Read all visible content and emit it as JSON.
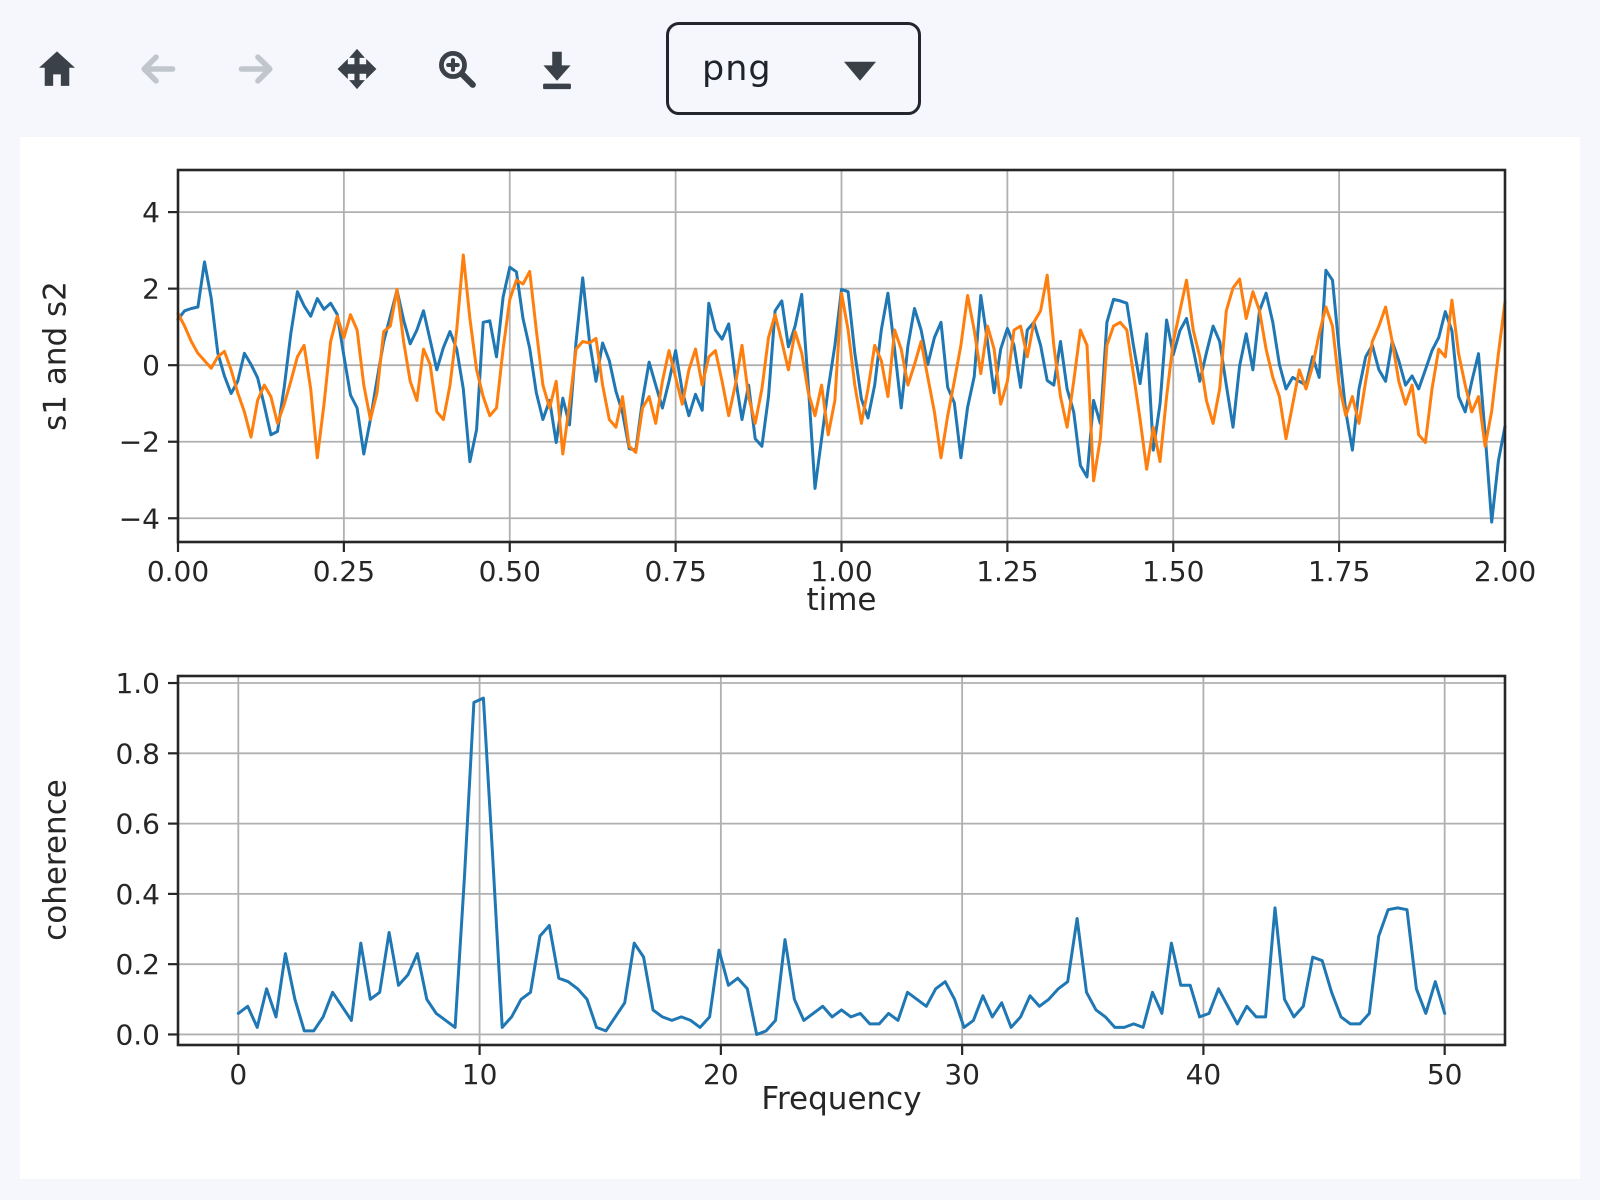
{
  "colors": {
    "page_bg": "#f5f7fd",
    "canvas_bg": "#ffffff",
    "series_blue": "#1f77b4",
    "series_orange": "#ff7f0e",
    "grid": "#b0b0b0",
    "frame": "#262626",
    "icon": "#3b4148",
    "icon_disabled": "#c1c6cd"
  },
  "toolbar": {
    "buttons": [
      {
        "name": "home",
        "icon": "home-icon",
        "enabled": true
      },
      {
        "name": "back",
        "icon": "arrow-left-icon",
        "enabled": false
      },
      {
        "name": "forward",
        "icon": "arrow-right-icon",
        "enabled": false
      },
      {
        "name": "pan",
        "icon": "move-icon",
        "enabled": true
      },
      {
        "name": "zoom",
        "icon": "zoom-in-icon",
        "enabled": true
      },
      {
        "name": "download",
        "icon": "download-icon",
        "enabled": true
      }
    ],
    "format_select": {
      "value": "png"
    }
  },
  "chart_data": [
    {
      "type": "line",
      "title": "",
      "xlabel": "time",
      "ylabel": "s1 and s2",
      "xlim": [
        0,
        2.0
      ],
      "ylim": [
        -4.62,
        5.1
      ],
      "grid": true,
      "legend": "none",
      "xticks": [
        0,
        0.25,
        0.5,
        0.75,
        1.0,
        1.25,
        1.5,
        1.75,
        2.0
      ],
      "xtick_labels": [
        "0.00",
        "0.25",
        "0.50",
        "0.75",
        "1.00",
        "1.25",
        "1.50",
        "1.75",
        "2.00"
      ],
      "yticks": [
        -4,
        -2,
        0,
        2,
        4
      ],
      "ytick_labels": [
        "−4",
        "−2",
        "0",
        "2",
        "4"
      ],
      "x": {
        "start": 0,
        "step": 0.01
      },
      "series": [
        {
          "name": "s1",
          "color": "#1f77b4",
          "values": [
            1.2,
            1.42,
            1.48,
            1.52,
            2.7,
            1.75,
            0.32,
            -0.28,
            -0.74,
            -0.42,
            0.31,
            0.02,
            -0.33,
            -1.05,
            -1.82,
            -1.73,
            -0.58,
            0.82,
            1.92,
            1.55,
            1.28,
            1.74,
            1.46,
            1.62,
            1.33,
            0.24,
            -0.78,
            -1.12,
            -2.32,
            -1.42,
            -0.38,
            0.62,
            1.28,
            1.96,
            1.18,
            0.56,
            0.92,
            1.42,
            0.66,
            -0.12,
            0.46,
            0.88,
            0.42,
            -0.62,
            -2.52,
            -1.68,
            1.12,
            1.16,
            0.22,
            1.78,
            2.56,
            2.44,
            1.22,
            0.44,
            -0.72,
            -1.42,
            -0.92,
            -2.02,
            -0.86,
            -1.56,
            0.62,
            2.28,
            0.64,
            -0.42,
            0.58,
            0.12,
            -0.68,
            -1.24,
            -2.18,
            -2.22,
            -0.92,
            0.08,
            -0.52,
            -1.12,
            -0.42,
            0.38,
            -0.68,
            -1.32,
            -0.76,
            -1.18,
            1.62,
            0.92,
            0.68,
            1.08,
            -0.32,
            -1.42,
            -0.52,
            -1.92,
            -2.12,
            -0.82,
            1.42,
            1.68,
            0.48,
            1.02,
            1.85,
            -0.52,
            -3.22,
            -1.92,
            -0.62,
            0.52,
            1.98,
            1.92,
            0.32,
            -0.88,
            -1.38,
            -0.52,
            0.92,
            1.88,
            0.42,
            -1.12,
            0.5,
            1.48,
            0.92,
            0.02,
            0.72,
            1.12,
            -0.58,
            -0.98,
            -2.42,
            -1.1,
            -0.3,
            1.82,
            0.62,
            -0.72,
            0.42,
            0.96,
            0.52,
            -0.58,
            0.92,
            1.12,
            0.52,
            -0.4,
            -0.52,
            0.62,
            -0.62,
            -1.22,
            -2.62,
            -2.92,
            -0.92,
            -1.52,
            1.12,
            1.72,
            1.68,
            1.62,
            0.52,
            -0.48,
            0.82,
            -2.22,
            -1.02,
            1.18,
            0.28,
            0.9,
            1.22,
            0.42,
            -0.42,
            0.32,
            1.02,
            0.62,
            -0.52,
            -1.62,
            -0.02,
            0.82,
            -0.12,
            1.42,
            1.88,
            1.12,
            0.02,
            -0.62,
            -0.32,
            -0.42,
            -0.52,
            0.22,
            -0.32,
            2.48,
            2.22,
            0.42,
            -1.22,
            -2.22,
            -0.62,
            0.22,
            0.52,
            -0.12,
            -0.42,
            0.62,
            0.12,
            -0.52,
            -0.28,
            -0.62,
            -0.12,
            0.38,
            0.72,
            1.4,
            0.9,
            -0.82,
            -1.22,
            -0.42,
            0.3,
            -1.8,
            -4.1,
            -2.5,
            -1.6
          ]
        },
        {
          "name": "s2",
          "color": "#ff7f0e",
          "values": [
            1.35,
            1.02,
            0.62,
            0.31,
            0.12,
            -0.08,
            0.22,
            0.36,
            -0.12,
            -0.72,
            -1.22,
            -1.88,
            -0.92,
            -0.52,
            -0.82,
            -1.52,
            -1.02,
            -0.42,
            0.22,
            0.52,
            -0.62,
            -2.42,
            -1.02,
            0.62,
            1.28,
            0.72,
            1.32,
            0.92,
            -0.52,
            -1.42,
            -0.72,
            0.88,
            1.02,
            1.98,
            0.62,
            -0.42,
            -0.92,
            0.42,
            0.02,
            -1.22,
            -1.42,
            -0.52,
            0.92,
            2.88,
            1.22,
            -0.12,
            -0.82,
            -1.32,
            -1.12,
            0.42,
            1.72,
            2.22,
            2.12,
            2.45,
            0.92,
            -0.52,
            -1.12,
            -0.42,
            -2.32,
            -1.02,
            0.42,
            0.62,
            0.58,
            0.7,
            -0.52,
            -1.42,
            -1.62,
            -0.82,
            -2.12,
            -2.28,
            -1.12,
            -0.82,
            -1.52,
            -0.42,
            0.38,
            -0.32,
            -1.02,
            -0.12,
            0.42,
            -0.52,
            0.22,
            0.38,
            -0.42,
            -1.32,
            -0.52,
            0.52,
            -0.82,
            -1.52,
            -0.62,
            0.72,
            1.32,
            0.62,
            -0.12,
            0.88,
            0.32,
            -0.72,
            -1.32,
            -0.52,
            -1.82,
            -0.92,
            1.88,
            0.92,
            -0.52,
            -1.52,
            -0.62,
            0.52,
            0.12,
            -0.82,
            0.92,
            0.42,
            -0.52,
            0.02,
            0.62,
            -0.32,
            -1.22,
            -2.42,
            -1.32,
            -0.42,
            0.52,
            1.82,
            0.92,
            -0.22,
            1.02,
            0.42,
            -1.02,
            -0.42,
            0.92,
            1.02,
            0.22,
            1.12,
            1.42,
            2.35,
            0.52,
            -0.82,
            -1.62,
            -0.42,
            0.92,
            0.52,
            -3.02,
            -1.92,
            0.52,
            1.02,
            1.12,
            0.92,
            -0.22,
            -1.42,
            -2.72,
            -1.62,
            -2.52,
            -0.82,
            0.62,
            1.42,
            2.22,
            0.92,
            0.22,
            -0.92,
            -1.52,
            -0.62,
            1.42,
            2.02,
            2.25,
            1.22,
            1.92,
            1.42,
            0.42,
            -0.32,
            -0.82,
            -1.92,
            -1.02,
            -0.12,
            -0.62,
            -0.02,
            0.82,
            1.52,
            1.02,
            -0.52,
            -1.32,
            -0.82,
            -1.52,
            -0.42,
            0.62,
            1.02,
            1.52,
            0.62,
            -0.42,
            -1.02,
            -0.52,
            -1.82,
            -2.02,
            -0.62,
            0.42,
            0.22,
            1.7,
            0.3,
            -0.52,
            -1.22,
            -0.82,
            -2.12,
            -1.2,
            0.3,
            1.65
          ]
        }
      ]
    },
    {
      "type": "line",
      "title": "",
      "xlabel": "Frequency",
      "ylabel": "coherence",
      "xlim": [
        -2.5,
        52.5
      ],
      "ylim": [
        -0.03,
        1.02
      ],
      "grid": true,
      "legend": "none",
      "xticks": [
        0,
        10,
        20,
        30,
        40,
        50
      ],
      "xtick_labels": [
        "0",
        "10",
        "20",
        "30",
        "40",
        "50"
      ],
      "yticks": [
        0,
        0.2,
        0.4,
        0.6,
        0.8,
        1.0
      ],
      "ytick_labels": [
        "0.0",
        "0.2",
        "0.4",
        "0.6",
        "0.8",
        "1.0"
      ],
      "x": {
        "start": 0,
        "step": 0.390625
      },
      "series": [
        {
          "name": "coherence",
          "color": "#1f77b4",
          "values": [
            0.06,
            0.08,
            0.02,
            0.13,
            0.05,
            0.23,
            0.1,
            0.01,
            0.01,
            0.05,
            0.12,
            0.08,
            0.04,
            0.26,
            0.1,
            0.12,
            0.29,
            0.14,
            0.17,
            0.23,
            0.1,
            0.06,
            0.04,
            0.02,
            0.45,
            0.945,
            0.957,
            0.5,
            0.02,
            0.05,
            0.1,
            0.12,
            0.28,
            0.31,
            0.16,
            0.15,
            0.13,
            0.1,
            0.02,
            0.01,
            0.05,
            0.09,
            0.26,
            0.22,
            0.07,
            0.05,
            0.04,
            0.05,
            0.04,
            0.02,
            0.05,
            0.24,
            0.14,
            0.16,
            0.13,
            0.0,
            0.01,
            0.04,
            0.27,
            0.1,
            0.04,
            0.06,
            0.08,
            0.05,
            0.07,
            0.05,
            0.06,
            0.03,
            0.03,
            0.06,
            0.04,
            0.12,
            0.1,
            0.08,
            0.13,
            0.15,
            0.1,
            0.02,
            0.04,
            0.11,
            0.05,
            0.09,
            0.02,
            0.05,
            0.11,
            0.08,
            0.1,
            0.13,
            0.15,
            0.33,
            0.12,
            0.07,
            0.05,
            0.02,
            0.02,
            0.03,
            0.02,
            0.12,
            0.06,
            0.26,
            0.14,
            0.14,
            0.05,
            0.06,
            0.13,
            0.08,
            0.03,
            0.08,
            0.05,
            0.05,
            0.36,
            0.1,
            0.05,
            0.08,
            0.22,
            0.21,
            0.12,
            0.05,
            0.03,
            0.03,
            0.06,
            0.28,
            0.355,
            0.36,
            0.355,
            0.13,
            0.06,
            0.15,
            0.06
          ]
        }
      ]
    }
  ]
}
